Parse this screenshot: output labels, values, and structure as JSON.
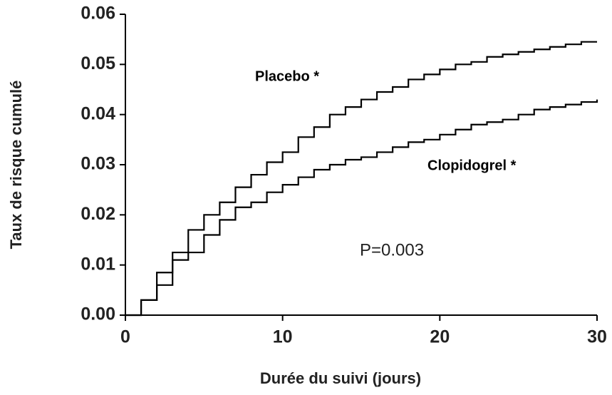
{
  "chart_data": {
    "type": "step",
    "x_label": "Durée du suivi (jours)",
    "y_label": "Taux de risque cumulé",
    "annotation": "P=0.003",
    "x": [
      0,
      1,
      2,
      3,
      4,
      5,
      6,
      7,
      8,
      9,
      10,
      11,
      12,
      13,
      14,
      15,
      16,
      17,
      18,
      19,
      20,
      21,
      22,
      23,
      24,
      25,
      26,
      27,
      28,
      29,
      30
    ],
    "series": [
      {
        "name": "Placebo *",
        "color": "#000000",
        "values": [
          0,
          0.003,
          0.0085,
          0.0125,
          0.017,
          0.02,
          0.0225,
          0.0255,
          0.028,
          0.0305,
          0.0325,
          0.0355,
          0.0375,
          0.04,
          0.0415,
          0.043,
          0.0445,
          0.0455,
          0.047,
          0.048,
          0.049,
          0.05,
          0.0505,
          0.0515,
          0.052,
          0.0525,
          0.053,
          0.0535,
          0.054,
          0.0545,
          0.0545
        ]
      },
      {
        "name": "Clopidogrel *",
        "color": "#000000",
        "values": [
          0,
          0.003,
          0.006,
          0.011,
          0.0125,
          0.016,
          0.019,
          0.0215,
          0.0225,
          0.0245,
          0.026,
          0.0275,
          0.029,
          0.03,
          0.031,
          0.0315,
          0.0325,
          0.0335,
          0.0345,
          0.035,
          0.036,
          0.037,
          0.038,
          0.0385,
          0.039,
          0.04,
          0.041,
          0.0415,
          0.042,
          0.0425,
          0.043
        ]
      }
    ],
    "xlim": [
      0,
      30
    ],
    "xticks": [
      0,
      10,
      20,
      30
    ],
    "ylim": [
      0,
      0.06
    ],
    "yticks": [
      {
        "value": 0,
        "label": "0.00"
      },
      0.01,
      0.02,
      0.03,
      0.04,
      0.05,
      0.06
    ],
    "grid": false
  }
}
